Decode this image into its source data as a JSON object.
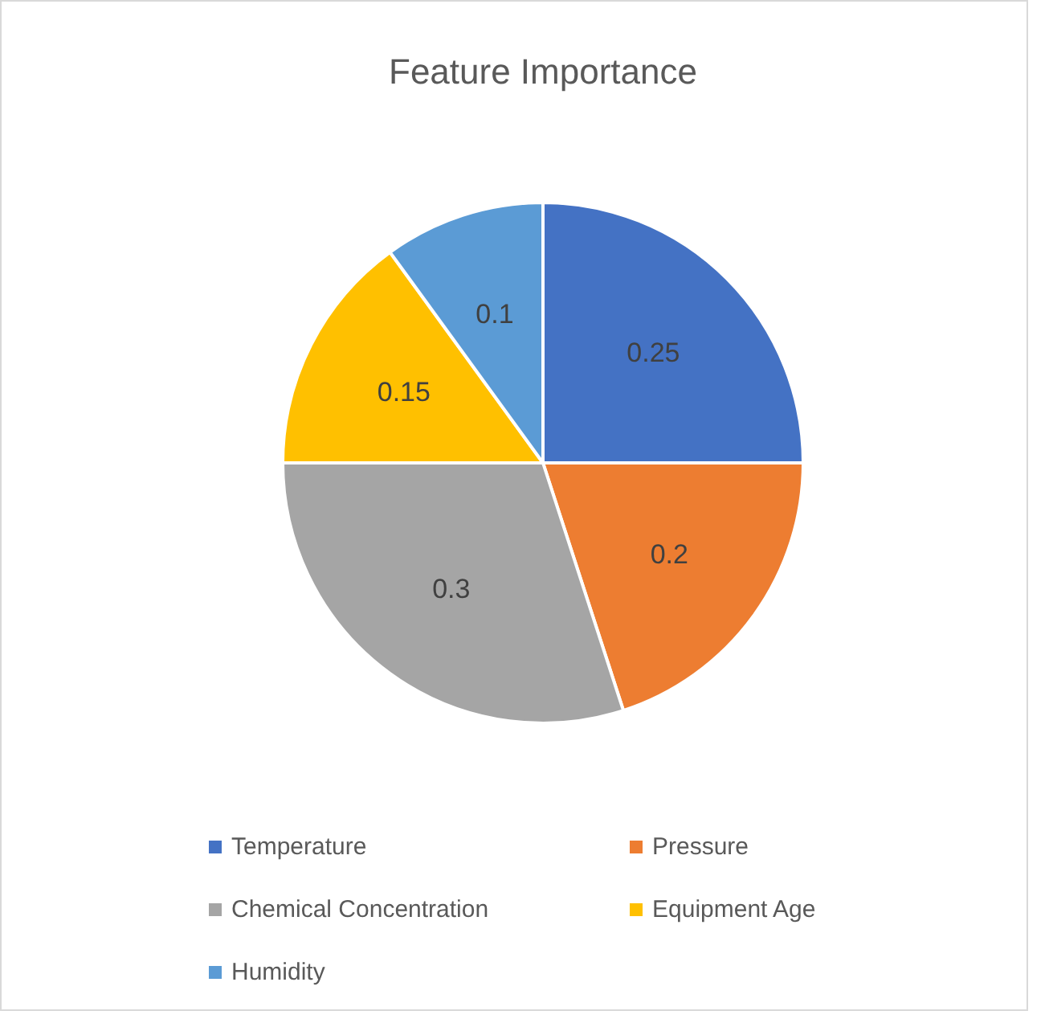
{
  "chart_data": {
    "type": "pie",
    "title": "Feature Importance",
    "categories": [
      "Temperature",
      "Pressure",
      "Chemical Concentration",
      "Equipment Age",
      "Humidity"
    ],
    "values": [
      0.25,
      0.2,
      0.3,
      0.15,
      0.1
    ],
    "colors": [
      "#4472c4",
      "#ed7d31",
      "#a5a5a5",
      "#ffc000",
      "#5b9bd5"
    ],
    "data_labels": true,
    "legend": "bottom"
  }
}
